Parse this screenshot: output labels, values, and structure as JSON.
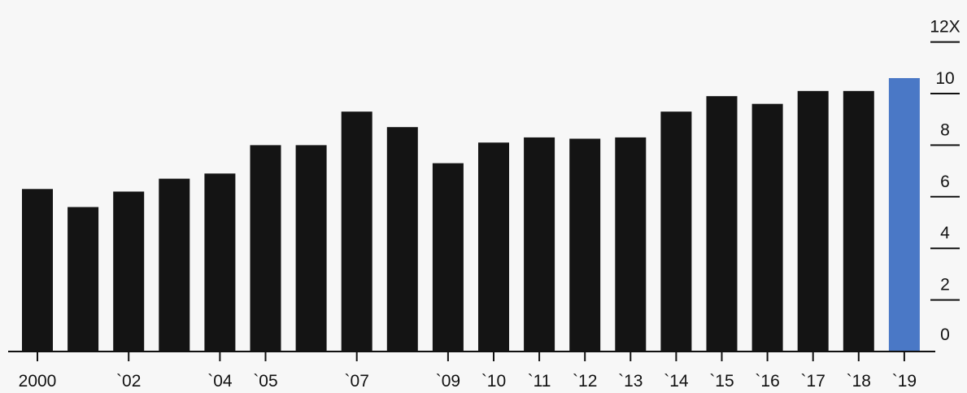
{
  "chart_data": {
    "type": "bar",
    "categories": [
      "2000",
      "2001",
      "2002",
      "2003",
      "2004",
      "2005",
      "2006",
      "2007",
      "2008",
      "2009",
      "2010",
      "2011",
      "2012",
      "2013",
      "2014",
      "2015",
      "2016",
      "2017",
      "2018",
      "2019"
    ],
    "values": [
      6.3,
      5.6,
      6.2,
      6.7,
      6.9,
      8.0,
      8.0,
      9.3,
      8.7,
      7.3,
      8.1,
      8.3,
      8.25,
      8.3,
      9.3,
      9.9,
      9.6,
      10.1,
      10.1,
      10.6
    ],
    "highlight_index": 19,
    "x_tick_labels": [
      "2000",
      "",
      "`02",
      "",
      "`04",
      "`05",
      "",
      "`07",
      "",
      "`09",
      "`10",
      "`11",
      "`12",
      "`13",
      "`14",
      "`15",
      "`16",
      "`17",
      "`18",
      "`19"
    ],
    "x_tick_marks": [
      true,
      false,
      true,
      false,
      true,
      true,
      false,
      true,
      false,
      true,
      true,
      true,
      true,
      true,
      true,
      true,
      true,
      true,
      true,
      true
    ],
    "y_ticks": [
      0,
      2,
      4,
      6,
      8,
      10,
      12
    ],
    "y_tick_labels": [
      "0",
      "2",
      "4",
      "6",
      "8",
      "10",
      "12X"
    ],
    "ylim": [
      0,
      12
    ],
    "axis_position": "right",
    "grid": false,
    "colors": {
      "bar": "#141414",
      "highlight": "#4a78c6",
      "axis": "#111111"
    }
  }
}
